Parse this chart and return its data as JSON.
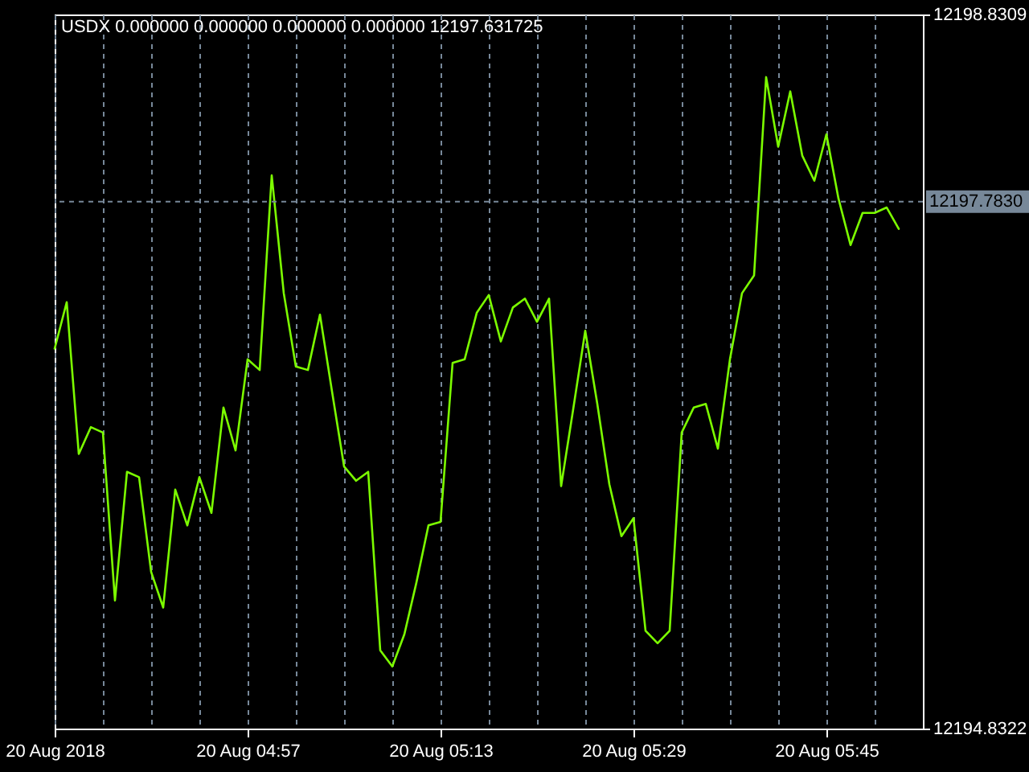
{
  "chart_data": {
    "type": "line",
    "title": "USDX 0.000000 0.000000 0.000000 0.000000 12197.631725",
    "x": [
      "2018-08-20T04:41",
      "2018-08-20T04:42",
      "2018-08-20T04:43",
      "2018-08-20T04:44",
      "2018-08-20T04:45",
      "2018-08-20T04:46",
      "2018-08-20T04:47",
      "2018-08-20T04:48",
      "2018-08-20T04:49",
      "2018-08-20T04:50",
      "2018-08-20T04:51",
      "2018-08-20T04:52",
      "2018-08-20T04:53",
      "2018-08-20T04:54",
      "2018-08-20T04:55",
      "2018-08-20T04:56",
      "2018-08-20T04:57",
      "2018-08-20T04:58",
      "2018-08-20T04:59",
      "2018-08-20T05:00",
      "2018-08-20T05:01",
      "2018-08-20T05:02",
      "2018-08-20T05:03",
      "2018-08-20T05:04",
      "2018-08-20T05:05",
      "2018-08-20T05:06",
      "2018-08-20T05:07",
      "2018-08-20T05:08",
      "2018-08-20T05:09",
      "2018-08-20T05:10",
      "2018-08-20T05:11",
      "2018-08-20T05:12",
      "2018-08-20T05:13",
      "2018-08-20T05:14",
      "2018-08-20T05:15",
      "2018-08-20T05:16",
      "2018-08-20T05:17",
      "2018-08-20T05:18",
      "2018-08-20T05:19",
      "2018-08-20T05:20",
      "2018-08-20T05:21",
      "2018-08-20T05:22",
      "2018-08-20T05:23",
      "2018-08-20T05:24",
      "2018-08-20T05:25",
      "2018-08-20T05:26",
      "2018-08-20T05:27",
      "2018-08-20T05:28",
      "2018-08-20T05:29",
      "2018-08-20T05:30",
      "2018-08-20T05:31",
      "2018-08-20T05:32",
      "2018-08-20T05:33",
      "2018-08-20T05:34",
      "2018-08-20T05:35",
      "2018-08-20T05:36",
      "2018-08-20T05:37",
      "2018-08-20T05:38",
      "2018-08-20T05:39",
      "2018-08-20T05:40",
      "2018-08-20T05:41",
      "2018-08-20T05:42",
      "2018-08-20T05:43",
      "2018-08-20T05:44",
      "2018-08-20T05:45",
      "2018-08-20T05:46",
      "2018-08-20T05:47",
      "2018-08-20T05:48",
      "2018-08-20T05:49",
      "2018-08-20T05:50",
      "2018-08-20T05:51"
    ],
    "series": [
      {
        "color": "#7cfc00",
        "values": [
          12196.96,
          12197.22,
          12196.37,
          12196.52,
          12196.49,
          12195.55,
          12196.27,
          12196.24,
          12195.71,
          12195.51,
          12196.17,
          12195.97,
          12196.24,
          12196.04,
          12196.63,
          12196.39,
          12196.9,
          12196.84,
          12197.93,
          12197.27,
          12196.86,
          12196.84,
          12197.15,
          12196.72,
          12196.3,
          12196.22,
          12196.27,
          12195.27,
          12195.18,
          12195.36,
          12195.65,
          12195.97,
          12195.99,
          12196.88,
          12196.9,
          12197.16,
          12197.26,
          12197.0,
          12197.19,
          12197.24,
          12197.11,
          12197.24,
          12196.19,
          12196.62,
          12197.06,
          12196.65,
          12196.2,
          12195.91,
          12196.01,
          12195.38,
          12195.31,
          12195.38,
          12196.49,
          12196.63,
          12196.65,
          12196.4,
          12196.9,
          12197.27,
          12197.37,
          12198.48,
          12198.09,
          12198.4,
          12198.04,
          12197.9,
          12198.16,
          12197.8,
          12197.54,
          12197.72,
          12197.72,
          12197.75,
          12197.63
        ]
      }
    ],
    "xlim": [
      "2018-08-20T04:41",
      "2018-08-20T05:53"
    ],
    "xticks": [
      {
        "value": "2018-08-20T04:41",
        "label": "20 Aug 2018"
      },
      {
        "value": "2018-08-20T04:45",
        "label": null
      },
      {
        "value": "2018-08-20T04:49",
        "label": null
      },
      {
        "value": "2018-08-20T04:53",
        "label": null
      },
      {
        "value": "2018-08-20T04:57",
        "label": "20 Aug 04:57"
      },
      {
        "value": "2018-08-20T05:01",
        "label": null
      },
      {
        "value": "2018-08-20T05:05",
        "label": null
      },
      {
        "value": "2018-08-20T05:09",
        "label": null
      },
      {
        "value": "2018-08-20T05:13",
        "label": "20 Aug 05:13"
      },
      {
        "value": "2018-08-20T05:17",
        "label": null
      },
      {
        "value": "2018-08-20T05:21",
        "label": null
      },
      {
        "value": "2018-08-20T05:25",
        "label": null
      },
      {
        "value": "2018-08-20T05:29",
        "label": "20 Aug 05:29"
      },
      {
        "value": "2018-08-20T05:33",
        "label": null
      },
      {
        "value": "2018-08-20T05:37",
        "label": null
      },
      {
        "value": "2018-08-20T05:41",
        "label": null
      },
      {
        "value": "2018-08-20T05:45",
        "label": "20 Aug 05:45"
      },
      {
        "value": "2018-08-20T05:49",
        "label": null
      }
    ],
    "ylim": [
      12194.8322,
      12198.8309
    ],
    "yticks": [
      12194.8322,
      12198.8309
    ],
    "ref_lines": [
      {
        "axis": "y",
        "value": 12197.783,
        "label": "12197.7830",
        "color": "#778899",
        "line_style": "dashed"
      }
    ],
    "grid": "x"
  }
}
